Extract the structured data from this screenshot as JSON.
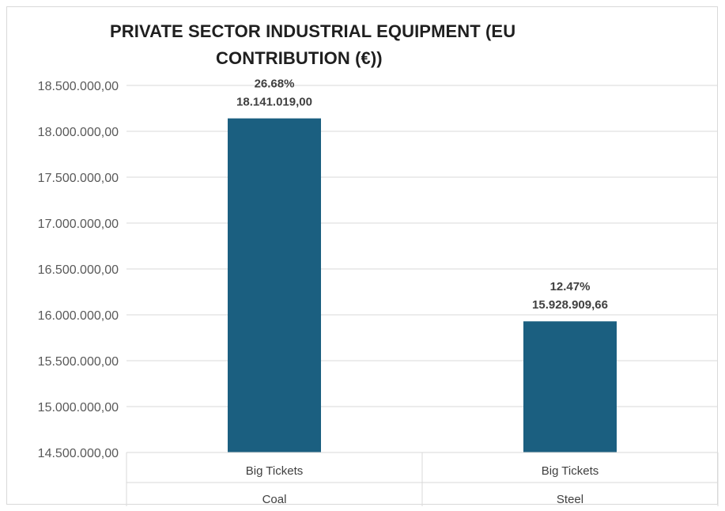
{
  "chart_data": {
    "type": "bar",
    "title_lines": [
      "PRIVATE SECTOR INDUSTRIAL EQUIPMENT (EU",
      "CONTRIBUTION (€))"
    ],
    "ylim": [
      14500000,
      18500000
    ],
    "y_ticks": [
      14500000,
      15000000,
      15500000,
      16000000,
      16500000,
      17000000,
      17500000,
      18000000,
      18500000
    ],
    "y_tick_labels": [
      "14.500.000,00",
      "15.000.000,00",
      "15.500.000,00",
      "16.000.000,00",
      "16.500.000,00",
      "17.000.000,00",
      "17.500.000,00",
      "18.000.000,00",
      "18.500.000,00"
    ],
    "categories": [
      {
        "group": "Big Tickets",
        "name": "Coal"
      },
      {
        "group": "Big Tickets",
        "name": "Steel"
      }
    ],
    "values": [
      18141019.0,
      15928909.66
    ],
    "value_labels": [
      "18.141.019,00",
      "15.928.909,66"
    ],
    "percent_labels": [
      "26.68%",
      "12.47%"
    ],
    "bar_color": "#1b5f80",
    "grid": true,
    "legend": "none"
  }
}
